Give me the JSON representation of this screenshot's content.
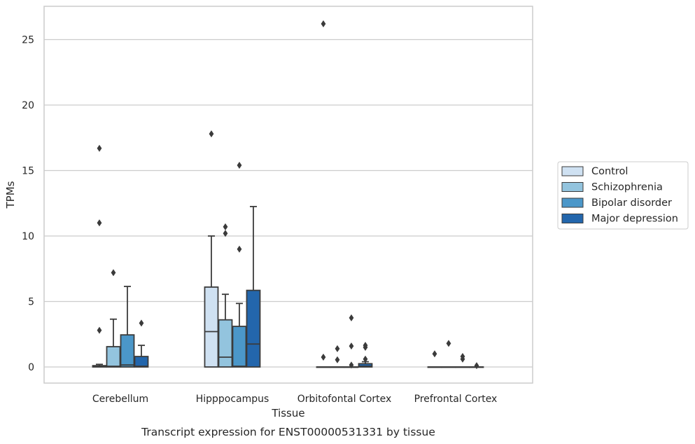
{
  "chart_data": {
    "type": "boxplot",
    "caption": "Transcript expression for ENST00000531331 by tissue",
    "xlabel": "Tissue",
    "ylabel": "TPMs",
    "ylim": [
      -1.3,
      27.5
    ],
    "yticks": [
      0,
      5,
      10,
      15,
      20,
      25
    ],
    "grid": "horizontal",
    "legend_position": "right",
    "categories": [
      "Cerebellum",
      "Hipppocampus",
      "Orbitofontal Cortex",
      "Prefrontal Cortex"
    ],
    "series": [
      {
        "name": "Control",
        "color": "#cfe1f2",
        "boxes": [
          {
            "whislo": 0,
            "q1": 0,
            "med": 0.05,
            "q3": 0.1,
            "whishi": 0.2,
            "fliers": [
              2.8,
              11.0,
              16.7
            ]
          },
          {
            "whislo": 0,
            "q1": 0,
            "med": 2.7,
            "q3": 6.1,
            "whishi": 10.0,
            "fliers": [
              17.8
            ]
          },
          {
            "whislo": 0,
            "q1": 0,
            "med": 0,
            "q3": 0,
            "whishi": 0,
            "fliers": [
              0.75,
              26.2
            ]
          },
          {
            "whislo": 0,
            "q1": 0,
            "med": 0,
            "q3": 0,
            "whishi": 0,
            "fliers": [
              1.0
            ]
          }
        ]
      },
      {
        "name": "Schizophrenia",
        "color": "#93c4de",
        "boxes": [
          {
            "whislo": 0,
            "q1": 0,
            "med": 0.05,
            "q3": 1.55,
            "whishi": 3.65,
            "fliers": [
              7.2
            ]
          },
          {
            "whislo": 0,
            "q1": 0,
            "med": 0.75,
            "q3": 3.6,
            "whishi": 5.55,
            "fliers": [
              10.2,
              10.7
            ]
          },
          {
            "whislo": 0,
            "q1": 0,
            "med": 0,
            "q3": 0,
            "whishi": 0,
            "fliers": [
              0.55,
              1.4
            ]
          },
          {
            "whislo": 0,
            "q1": 0,
            "med": 0,
            "q3": 0,
            "whishi": 0,
            "fliers": [
              1.8
            ]
          }
        ]
      },
      {
        "name": "Bipolar disorder",
        "color": "#4b97c9",
        "boxes": [
          {
            "whislo": 0,
            "q1": 0,
            "med": 0.15,
            "q3": 2.45,
            "whishi": 6.15,
            "fliers": []
          },
          {
            "whislo": 0,
            "q1": 0,
            "med": 0.05,
            "q3": 3.1,
            "whishi": 4.85,
            "fliers": [
              9.0,
              15.4
            ]
          },
          {
            "whislo": 0,
            "q1": 0,
            "med": 0,
            "q3": 0,
            "whishi": 0,
            "fliers": [
              0.15,
              1.6,
              3.75
            ]
          },
          {
            "whislo": 0,
            "q1": 0,
            "med": 0,
            "q3": 0,
            "whishi": 0,
            "fliers": [
              0.6,
              0.8
            ]
          }
        ]
      },
      {
        "name": "Major depression",
        "color": "#2366ac",
        "boxes": [
          {
            "whislo": 0,
            "q1": 0,
            "med": 0.05,
            "q3": 0.8,
            "whishi": 1.65,
            "fliers": [
              3.35
            ]
          },
          {
            "whislo": 0,
            "q1": 0,
            "med": 1.75,
            "q3": 5.85,
            "whishi": 12.25,
            "fliers": []
          },
          {
            "whislo": 0,
            "q1": 0,
            "med": 0.05,
            "q3": 0.25,
            "whishi": 0.4,
            "fliers": [
              0.6,
              1.5,
              1.65
            ]
          },
          {
            "whislo": 0,
            "q1": 0,
            "med": 0,
            "q3": 0,
            "whishi": 0,
            "fliers": [
              0.1
            ]
          }
        ]
      }
    ]
  }
}
